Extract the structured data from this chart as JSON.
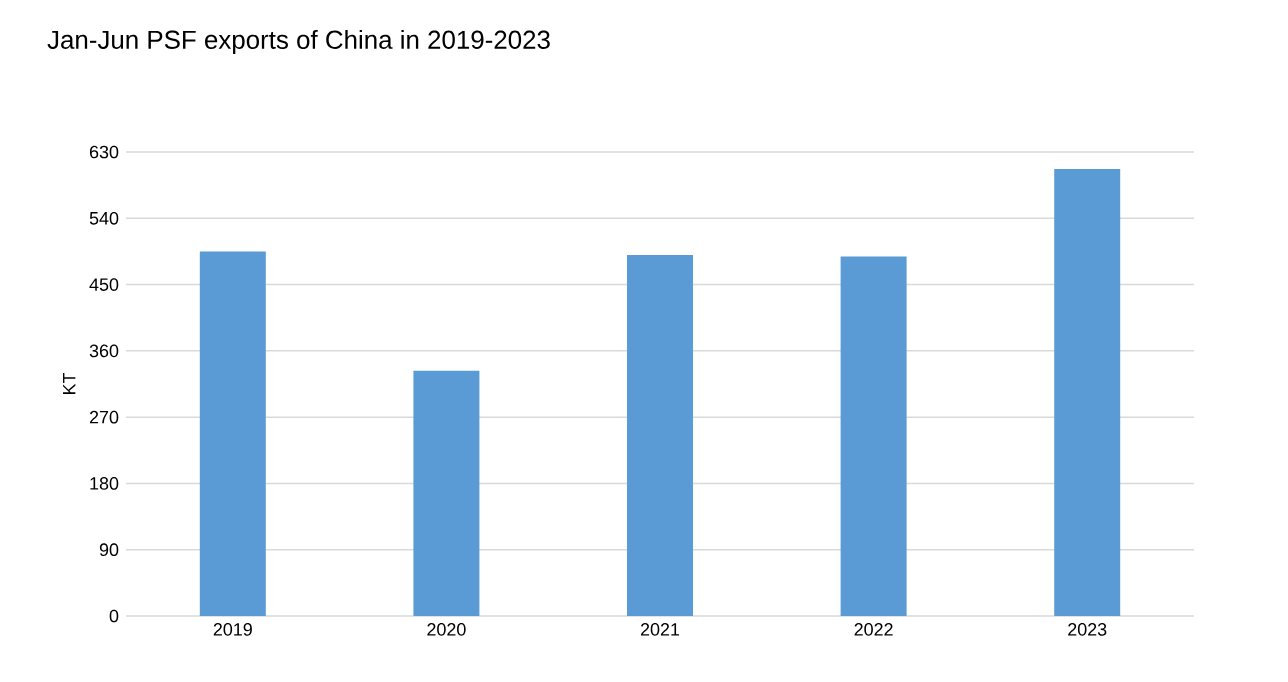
{
  "chart_data": {
    "type": "bar",
    "title": "Jan-Jun PSF exports of China in 2019-2023",
    "ylabel": "KT",
    "categories": [
      "2019",
      "2020",
      "2021",
      "2022",
      "2023"
    ],
    "values": [
      495,
      333,
      490,
      488,
      607
    ],
    "color": "#5b9bd5",
    "ylim": [
      0,
      630
    ],
    "yticks": [
      0,
      90,
      180,
      270,
      360,
      450,
      540,
      630
    ],
    "grid": "y"
  }
}
